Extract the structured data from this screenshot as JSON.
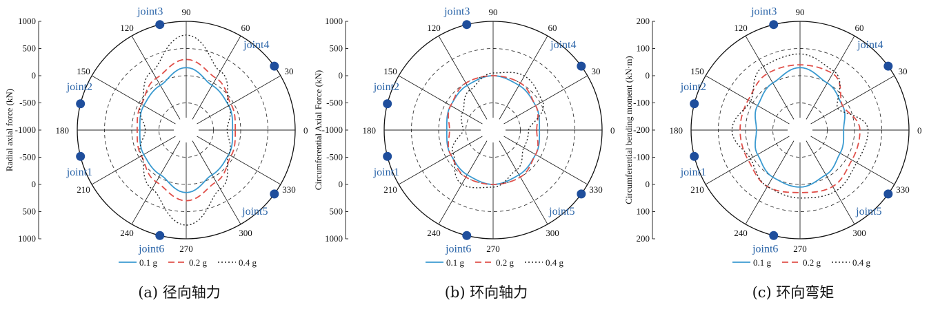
{
  "figure": {
    "colors": {
      "s1": "#3a9ad0",
      "s2": "#e0504a",
      "s3": "#222222",
      "joint": "#1f4e9c",
      "jointLabel": "#2a64a8"
    }
  },
  "chart_data": [
    {
      "type": "polar",
      "caption": "(a) 径向轴力",
      "ylabel": "Radial axial force (kN)",
      "r_tick_labels": [
        "1000",
        "500",
        "0",
        "-500",
        "-1000",
        "-500",
        "0",
        "500",
        "1000"
      ],
      "r_range": [
        -1000,
        1000
      ],
      "angle_ticks": [
        "0",
        "30",
        "60",
        "90",
        "120",
        "150",
        "180",
        "210",
        "240",
        "270",
        "300",
        "330"
      ],
      "joints": [
        {
          "name": "joint1",
          "angle": 194
        },
        {
          "name": "joint2",
          "angle": 166
        },
        {
          "name": "joint3",
          "angle": 104
        },
        {
          "name": "joint4",
          "angle": 36
        },
        {
          "name": "joint5",
          "angle": 324
        },
        {
          "name": "joint6",
          "angle": 256
        }
      ],
      "series": [
        {
          "name": "0.1 g",
          "style": "solid",
          "angles": [
            0,
            30,
            60,
            90,
            120,
            150,
            180,
            210,
            240,
            270,
            300,
            330
          ],
          "values": [
            -150,
            -100,
            -50,
            150,
            -50,
            -100,
            -150,
            -100,
            -50,
            150,
            -50,
            -100
          ]
        },
        {
          "name": "0.2 g",
          "style": "dashed",
          "angles": [
            0,
            30,
            60,
            90,
            120,
            150,
            180,
            210,
            240,
            270,
            300,
            330
          ],
          "values": [
            -100,
            -50,
            100,
            300,
            100,
            -50,
            -100,
            -50,
            100,
            300,
            100,
            -50
          ]
        },
        {
          "name": "0.4 g",
          "style": "dotted",
          "angles": [
            0,
            30,
            60,
            90,
            120,
            150,
            180,
            210,
            240,
            270,
            300,
            330
          ],
          "values": [
            -250,
            -100,
            250,
            750,
            250,
            -50,
            -250,
            -50,
            250,
            750,
            250,
            -100
          ]
        }
      ]
    },
    {
      "type": "polar",
      "caption": "(b) 环向轴力",
      "ylabel": "Circumferential Axial Force (kN)",
      "r_tick_labels": [
        "1000",
        "500",
        "0",
        "-500",
        "-1000",
        "-500",
        "0",
        "500",
        "1000"
      ],
      "r_range": [
        -1000,
        1000
      ],
      "angle_ticks": [
        "0",
        "30",
        "60",
        "90",
        "120",
        "150",
        "180",
        "210",
        "240",
        "270",
        "300",
        "330"
      ],
      "joints": [
        {
          "name": "joint1",
          "angle": 194
        },
        {
          "name": "joint2",
          "angle": 166
        },
        {
          "name": "joint3",
          "angle": 104
        },
        {
          "name": "joint4",
          "angle": 36
        },
        {
          "name": "joint5",
          "angle": 324
        },
        {
          "name": "joint6",
          "angle": 256
        }
      ],
      "series": [
        {
          "name": "0.1 g",
          "style": "solid",
          "angles": [
            0,
            30,
            60,
            90,
            120,
            150,
            180,
            210,
            240,
            270,
            300,
            330
          ],
          "values": [
            -150,
            -100,
            -50,
            0,
            -50,
            -100,
            -150,
            -100,
            -50,
            0,
            -50,
            -100
          ]
        },
        {
          "name": "0.2 g",
          "style": "dashed",
          "angles": [
            0,
            30,
            60,
            90,
            120,
            150,
            180,
            210,
            240,
            270,
            300,
            330
          ],
          "values": [
            -200,
            -100,
            0,
            0,
            0,
            -100,
            -200,
            -100,
            0,
            0,
            0,
            -100
          ]
        },
        {
          "name": "0.4 g",
          "style": "dotted",
          "angles": [
            0,
            30,
            60,
            90,
            120,
            150,
            180,
            210,
            240,
            270,
            300,
            330
          ],
          "values": [
            -350,
            50,
            150,
            50,
            -150,
            -350,
            -450,
            -150,
            150,
            50,
            -150,
            -350
          ]
        }
      ]
    },
    {
      "type": "polar",
      "caption": "(c) 环向弯矩",
      "ylabel": "Circumferential bending moment (kN·m)",
      "r_tick_labels": [
        "200",
        "100",
        "0",
        "-100",
        "-200",
        "-100",
        "0",
        "100",
        "200"
      ],
      "r_range": [
        -200,
        200
      ],
      "angle_ticks": [
        "0",
        "30",
        "60",
        "90",
        "120",
        "150",
        "180",
        "210",
        "240",
        "270",
        "300",
        "330"
      ],
      "joints": [
        {
          "name": "joint1",
          "angle": 194
        },
        {
          "name": "joint2",
          "angle": 166
        },
        {
          "name": "joint3",
          "angle": 104
        },
        {
          "name": "joint4",
          "angle": 36
        },
        {
          "name": "joint5",
          "angle": 324
        },
        {
          "name": "joint6",
          "angle": 256
        }
      ],
      "series": [
        {
          "name": "0.1 g",
          "style": "solid",
          "angles": [
            0,
            30,
            60,
            90,
            120,
            150,
            180,
            210,
            240,
            270,
            300,
            330
          ],
          "values": [
            -40,
            -20,
            0,
            30,
            0,
            -20,
            -40,
            -20,
            0,
            10,
            -10,
            -30
          ]
        },
        {
          "name": "0.2 g",
          "style": "dashed",
          "angles": [
            0,
            30,
            60,
            90,
            120,
            150,
            180,
            210,
            240,
            270,
            300,
            330
          ],
          "values": [
            20,
            -20,
            40,
            40,
            40,
            20,
            20,
            20,
            40,
            30,
            40,
            20
          ]
        },
        {
          "name": "0.4 g",
          "style": "dotted",
          "angles": [
            0,
            30,
            60,
            90,
            120,
            150,
            180,
            210,
            240,
            270,
            300,
            330
          ],
          "values": [
            50,
            -40,
            50,
            80,
            70,
            10,
            50,
            10,
            40,
            50,
            60,
            40
          ]
        }
      ]
    }
  ]
}
